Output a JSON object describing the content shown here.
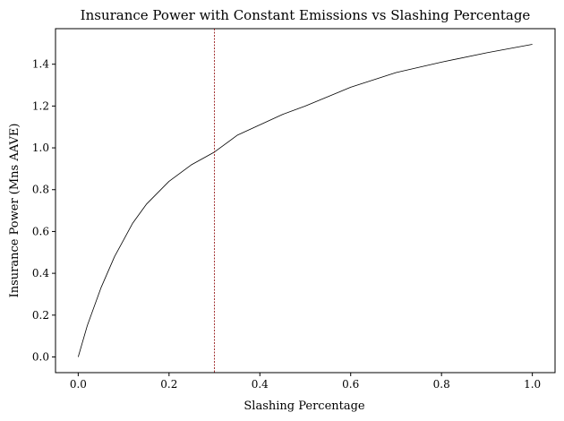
{
  "chart_data": {
    "type": "line",
    "title": "Insurance Power with Constant Emissions vs Slashing Percentage",
    "xlabel": "Slashing Percentage",
    "ylabel": "Insurance Power (Mns AAVE)",
    "xlim": [
      -0.05,
      1.05
    ],
    "ylim": [
      -0.075,
      1.57
    ],
    "xticks": [
      0.0,
      0.2,
      0.4,
      0.6,
      0.8,
      1.0
    ],
    "xtick_labels": [
      "0.0",
      "0.2",
      "0.4",
      "0.6",
      "0.8",
      "1.0"
    ],
    "yticks": [
      0.0,
      0.2,
      0.4,
      0.6,
      0.8,
      1.0,
      1.2,
      1.4
    ],
    "ytick_labels": [
      "0.0",
      "0.2",
      "0.4",
      "0.6",
      "0.8",
      "1.0",
      "1.2",
      "1.4"
    ],
    "grid": false,
    "series": [
      {
        "color": "#000000",
        "x": [
          0.0,
          0.02,
          0.05,
          0.08,
          0.1,
          0.12,
          0.15,
          0.2,
          0.25,
          0.3,
          0.35,
          0.4,
          0.45,
          0.5,
          0.6,
          0.7,
          0.8,
          0.9,
          1.0
        ],
        "y": [
          0.0,
          0.15,
          0.33,
          0.48,
          0.56,
          0.64,
          0.73,
          0.84,
          0.92,
          0.98,
          1.06,
          1.11,
          1.16,
          1.2,
          1.29,
          1.36,
          1.41,
          1.455,
          1.495
        ]
      }
    ],
    "reference_lines": [
      {
        "orientation": "vertical",
        "x": 0.3,
        "color": "#8b0000",
        "style": "dashed"
      }
    ]
  }
}
